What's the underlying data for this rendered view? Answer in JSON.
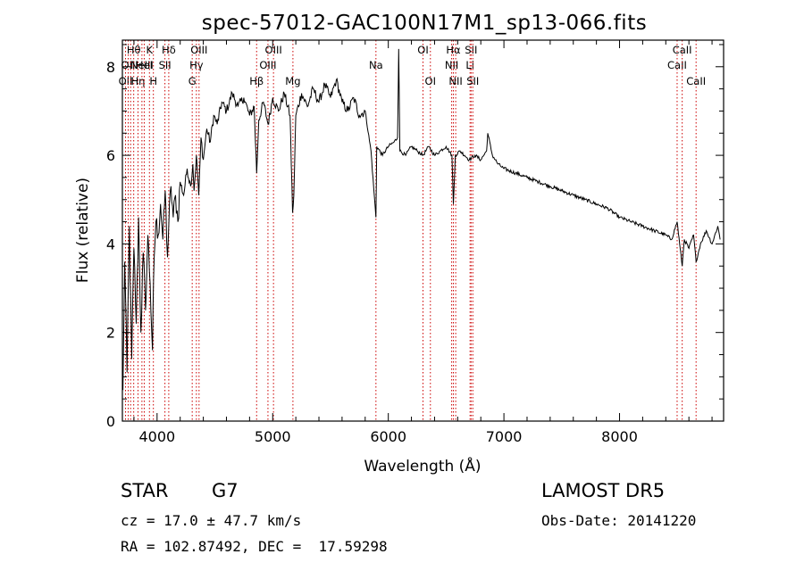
{
  "chart_data": {
    "type": "line",
    "title": "spec-57012-GAC100N17M1_sp13-066.fits",
    "xlabel": "Wavelength (Å)",
    "ylabel": "Flux (relative)",
    "xlim": [
      3700,
      8900
    ],
    "ylim": [
      0,
      8.6
    ],
    "xticks": [
      4000,
      5000,
      6000,
      7000,
      8000
    ],
    "yticks": [
      0,
      2,
      4,
      6,
      8
    ],
    "grid": false,
    "line_color": "#000000",
    "marker_color": "#cc0000",
    "series": [
      {
        "x": [
          3705,
          3720,
          3740,
          3760,
          3780,
          3800,
          3820,
          3840,
          3860,
          3880,
          3900,
          3920,
          3940,
          3960,
          3975,
          3990,
          4010,
          4030,
          4050,
          4070,
          4090,
          4101,
          4120,
          4140,
          4160,
          4180,
          4200,
          4230,
          4260,
          4290,
          4310,
          4320,
          4340,
          4361,
          4380,
          4400,
          4430,
          4460,
          4490,
          4520,
          4560,
          4600,
          4650,
          4700,
          4750,
          4800,
          4840,
          4861,
          4880,
          4920,
          4960,
          5000,
          5050,
          5100,
          5150,
          5172,
          5183,
          5200,
          5250,
          5300,
          5350,
          5400,
          5450,
          5500,
          5550,
          5600,
          5650,
          5700,
          5750,
          5800,
          5850,
          5893,
          5900,
          5950,
          6000,
          6050,
          6080,
          6090,
          6100,
          6150,
          6200,
          6250,
          6300,
          6350,
          6400,
          6450,
          6500,
          6550,
          6563,
          6580,
          6620,
          6660,
          6700,
          6750,
          6800,
          6850,
          6860,
          6900,
          6950,
          7000,
          7100,
          7200,
          7300,
          7400,
          7500,
          7600,
          7700,
          7800,
          7900,
          8000,
          8100,
          8200,
          8300,
          8400,
          8450,
          8498,
          8520,
          8542,
          8560,
          8600,
          8640,
          8662,
          8700,
          8750,
          8800,
          8850,
          8870
        ],
        "y": [
          0.7,
          3.6,
          1.1,
          4.4,
          1.4,
          3.9,
          2.2,
          4.6,
          2.0,
          3.8,
          2.5,
          4.2,
          3.1,
          1.6,
          3.7,
          4.5,
          4.2,
          4.9,
          4.1,
          5.2,
          3.7,
          4.4,
          5.3,
          4.6,
          5.1,
          4.5,
          5.4,
          5.1,
          5.7,
          5.3,
          5.8,
          5.2,
          6.0,
          5.1,
          6.4,
          5.9,
          6.6,
          6.3,
          6.9,
          6.7,
          7.2,
          7.0,
          7.4,
          7.1,
          7.3,
          6.9,
          7.1,
          5.6,
          6.8,
          7.2,
          6.7,
          7.3,
          7.0,
          7.4,
          6.9,
          4.7,
          5.1,
          6.9,
          7.4,
          7.1,
          7.5,
          7.2,
          7.6,
          7.3,
          7.7,
          7.2,
          7.0,
          7.3,
          6.9,
          7.0,
          6.1,
          4.6,
          6.2,
          6.0,
          6.2,
          6.3,
          6.4,
          8.4,
          6.1,
          6.0,
          6.2,
          6.1,
          6.0,
          6.2,
          6.0,
          6.1,
          6.2,
          6.0,
          4.9,
          6.0,
          6.1,
          6.0,
          5.9,
          6.0,
          5.9,
          6.1,
          6.5,
          6.0,
          5.8,
          5.7,
          5.6,
          5.5,
          5.4,
          5.3,
          5.2,
          5.1,
          5.0,
          4.9,
          4.8,
          4.6,
          4.5,
          4.4,
          4.3,
          4.2,
          4.1,
          4.5,
          4.0,
          3.5,
          4.1,
          3.9,
          4.2,
          3.6,
          4.0,
          4.3,
          4.0,
          4.4,
          4.1
        ]
      }
    ],
    "line_markers": [
      {
        "wl": 3727,
        "label": "OII",
        "row": 2
      },
      {
        "wl": 3750,
        "label": "OII",
        "row": 1
      },
      {
        "wl": 3771,
        "label": "",
        "row": 0
      },
      {
        "wl": 3798,
        "label": "Hθ",
        "row": 0
      },
      {
        "wl": 3835,
        "label": "Hη",
        "row": 2
      },
      {
        "wl": 3869,
        "label": "NeIII",
        "row": 1
      },
      {
        "wl": 3889,
        "label": "HeI",
        "row": 1
      },
      {
        "wl": 3934,
        "label": "K",
        "row": 0
      },
      {
        "wl": 3968,
        "label": "H",
        "row": 2
      },
      {
        "wl": 4068,
        "label": "SII",
        "row": 1
      },
      {
        "wl": 4101,
        "label": "Hδ",
        "row": 0
      },
      {
        "wl": 4304,
        "label": "G",
        "row": 2
      },
      {
        "wl": 4340,
        "label": "Hγ",
        "row": 1
      },
      {
        "wl": 4363,
        "label": "OIII",
        "row": 0
      },
      {
        "wl": 4861,
        "label": "Hβ",
        "row": 2
      },
      {
        "wl": 4959,
        "label": "OIII",
        "row": 1
      },
      {
        "wl": 5007,
        "label": "OIII",
        "row": 0
      },
      {
        "wl": 5175,
        "label": "Mg",
        "row": 2
      },
      {
        "wl": 5893,
        "label": "Na",
        "row": 1
      },
      {
        "wl": 6300,
        "label": "OI",
        "row": 0
      },
      {
        "wl": 6364,
        "label": "OI",
        "row": 2
      },
      {
        "wl": 6548,
        "label": "NII",
        "row": 1
      },
      {
        "wl": 6563,
        "label": "Hα",
        "row": 0
      },
      {
        "wl": 6583,
        "label": "NII",
        "row": 2
      },
      {
        "wl": 6707,
        "label": "Li",
        "row": 1
      },
      {
        "wl": 6716,
        "label": "SII",
        "row": 0
      },
      {
        "wl": 6731,
        "label": "SII",
        "row": 2
      },
      {
        "wl": 8498,
        "label": "CaII",
        "row": 1
      },
      {
        "wl": 8542,
        "label": "CaII",
        "row": 0
      },
      {
        "wl": 8662,
        "label": "CaII",
        "row": 2
      }
    ]
  },
  "info": {
    "object_class": "STAR",
    "subclass": "G7",
    "redshift_line": "cz = 17.0 ± 47.7 km/s",
    "coords_line": "RA = 102.87492, DEC =  17.59298",
    "survey": "LAMOST DR5",
    "obs_date_line": "Obs-Date: 20141220"
  }
}
